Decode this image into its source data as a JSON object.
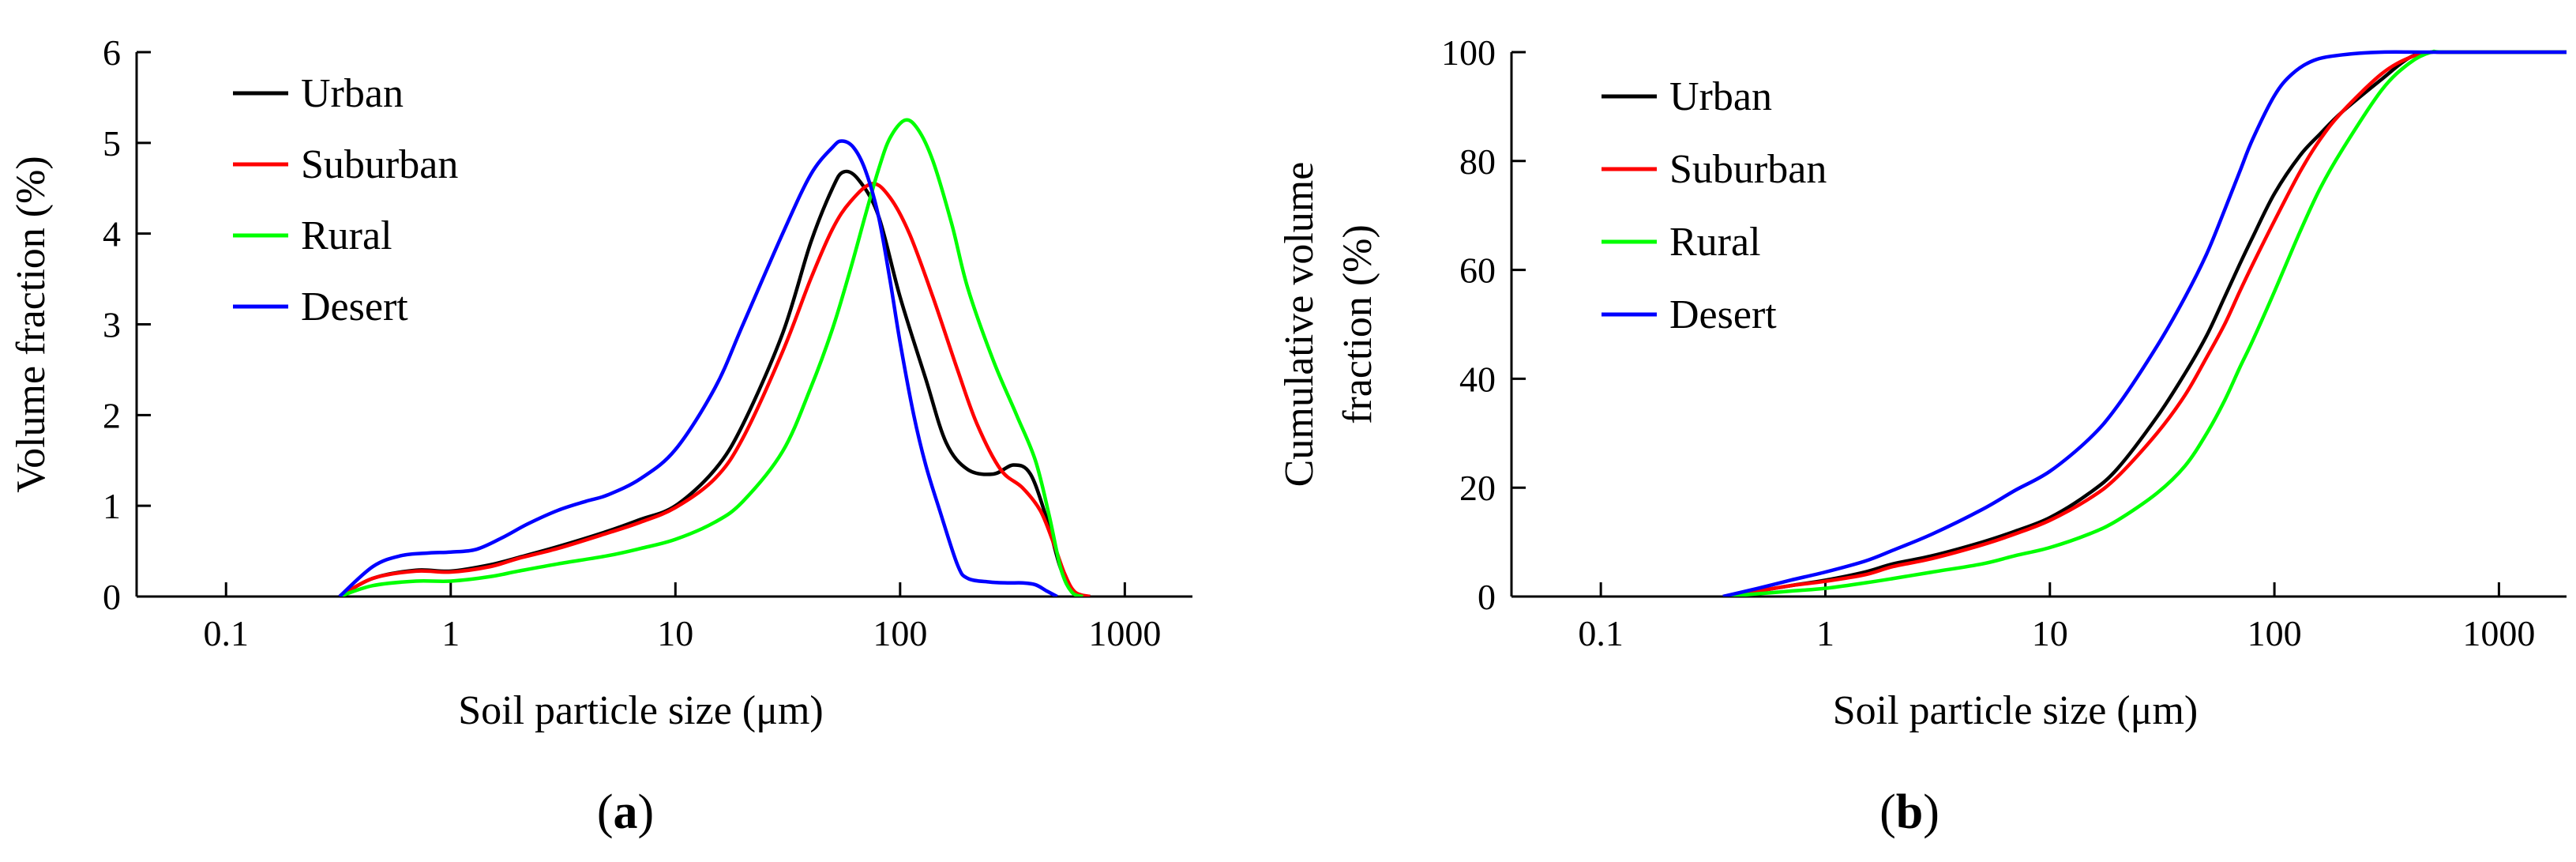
{
  "chart_data": [
    {
      "panel": "a",
      "type": "line",
      "xscale": "log",
      "xlabel": "Soil particle size (μm)",
      "ylabel": "Volume fraction (%)",
      "xlim": [
        0.04,
        2000
      ],
      "ylim": [
        0,
        6
      ],
      "xticks": [
        0.1,
        1,
        10,
        100,
        1000
      ],
      "xtick_labels": [
        "0.1",
        "1",
        "10",
        "100",
        "1000"
      ],
      "yticks": [
        0,
        1,
        2,
        3,
        4,
        5,
        6
      ],
      "ytick_labels": [
        "0",
        "1",
        "2",
        "3",
        "4",
        "5",
        "6"
      ],
      "label_parts": [
        "(",
        "a",
        ")"
      ],
      "series": [
        {
          "name": "Urban",
          "color": "#000000",
          "x": [
            0.32,
            0.45,
            0.7,
            1.0,
            1.5,
            2,
            3,
            5,
            7,
            10,
            15,
            20,
            30,
            40,
            50,
            56,
            65,
            80,
            100,
            130,
            160,
            200,
            260,
            320,
            380,
            450,
            520,
            600,
            700
          ],
          "y": [
            0,
            0.2,
            0.29,
            0.28,
            0.35,
            0.43,
            0.55,
            0.72,
            0.85,
            1.0,
            1.4,
            1.9,
            2.9,
            3.9,
            4.5,
            4.68,
            4.6,
            4.2,
            3.3,
            2.4,
            1.7,
            1.4,
            1.35,
            1.45,
            1.35,
            0.85,
            0.3,
            0.04,
            0
          ]
        },
        {
          "name": "Suburban",
          "color": "#ff0000",
          "x": [
            0.32,
            0.45,
            0.7,
            1.0,
            1.5,
            2,
            3,
            5,
            7,
            10,
            15,
            20,
            30,
            40,
            50,
            60,
            75,
            90,
            110,
            140,
            180,
            220,
            280,
            350,
            420,
            480,
            540,
            600,
            700
          ],
          "y": [
            0,
            0.2,
            0.28,
            0.27,
            0.33,
            0.42,
            0.53,
            0.7,
            0.82,
            0.98,
            1.3,
            1.75,
            2.7,
            3.5,
            4.05,
            4.35,
            4.55,
            4.4,
            4.0,
            3.3,
            2.5,
            1.9,
            1.4,
            1.2,
            0.95,
            0.6,
            0.25,
            0.05,
            0
          ]
        },
        {
          "name": "Rural",
          "color": "#00ff00",
          "x": [
            0.32,
            0.45,
            0.7,
            1.0,
            1.5,
            2,
            3,
            5,
            7,
            10,
            15,
            20,
            30,
            40,
            50,
            60,
            70,
            80,
            90,
            105,
            120,
            140,
            170,
            200,
            260,
            330,
            400,
            460,
            520,
            580,
            650
          ],
          "y": [
            0,
            0.12,
            0.17,
            0.17,
            0.22,
            0.28,
            0.36,
            0.45,
            0.53,
            0.63,
            0.82,
            1.05,
            1.6,
            2.3,
            2.95,
            3.6,
            4.2,
            4.7,
            5.05,
            5.25,
            5.15,
            4.8,
            4.1,
            3.4,
            2.6,
            2.0,
            1.5,
            0.9,
            0.3,
            0.05,
            0
          ]
        },
        {
          "name": "Desert",
          "color": "#0000ff",
          "x": [
            0.32,
            0.45,
            0.6,
            0.8,
            1.0,
            1.3,
            1.7,
            2.2,
            3,
            4,
            5,
            7,
            10,
            15,
            20,
            30,
            40,
            50,
            55,
            62,
            70,
            80,
            90,
            100,
            115,
            130,
            150,
            180,
            200,
            250,
            300,
            350,
            400,
            450,
            500
          ],
          "y": [
            0,
            0.33,
            0.45,
            0.48,
            0.49,
            0.52,
            0.65,
            0.8,
            0.95,
            1.05,
            1.12,
            1.3,
            1.62,
            2.3,
            3.0,
            4.0,
            4.65,
            4.95,
            5.02,
            4.95,
            4.7,
            4.2,
            3.5,
            2.8,
            2.0,
            1.45,
            0.95,
            0.35,
            0.2,
            0.16,
            0.15,
            0.15,
            0.13,
            0.06,
            0
          ]
        }
      ]
    },
    {
      "panel": "b",
      "type": "line",
      "xscale": "log",
      "xlabel": "Soil particle size (μm)",
      "ylabel": [
        "Cumulative volume",
        "fraction (%)"
      ],
      "xlim": [
        0.04,
        2000
      ],
      "ylim": [
        0,
        100
      ],
      "xticks": [
        0.1,
        1,
        10,
        100,
        1000
      ],
      "xtick_labels": [
        "0.1",
        "1",
        "10",
        "100",
        "1000"
      ],
      "yticks": [
        0,
        20,
        40,
        60,
        80,
        100
      ],
      "ytick_labels": [
        "0",
        "20",
        "40",
        "60",
        "80",
        "100"
      ],
      "label_parts": [
        "(",
        "b",
        ")"
      ],
      "series": [
        {
          "name": "Urban",
          "color": "#000000",
          "x": [
            0.35,
            0.5,
            0.7,
            1,
            1.5,
            2,
            3,
            5,
            7,
            10,
            15,
            20,
            30,
            40,
            50,
            60,
            70,
            80,
            100,
            130,
            160,
            200,
            300,
            400,
            500,
            600,
            2000
          ],
          "y": [
            0,
            1,
            2,
            3,
            4.5,
            6,
            7.5,
            10,
            12,
            14.5,
            19,
            23.5,
            33,
            41,
            48,
            55,
            61,
            66,
            74,
            81,
            85,
            89,
            95,
            99,
            100,
            100,
            100
          ]
        },
        {
          "name": "Suburban",
          "color": "#ff0000",
          "x": [
            0.35,
            0.5,
            0.7,
            1,
            1.5,
            2,
            3,
            5,
            7,
            10,
            15,
            20,
            30,
            40,
            50,
            60,
            70,
            80,
            100,
            130,
            160,
            200,
            300,
            400,
            500,
            600,
            2000
          ],
          "y": [
            0,
            1,
            2,
            2.8,
            4,
            5.5,
            7,
            9.5,
            11.5,
            14,
            18,
            22,
            30,
            37,
            44,
            50,
            56,
            61,
            69,
            78,
            84,
            89,
            96,
            99,
            100,
            100,
            100
          ]
        },
        {
          "name": "Rural",
          "color": "#00ff00",
          "x": [
            0.35,
            0.5,
            0.7,
            1,
            1.5,
            2,
            3,
            5,
            7,
            10,
            15,
            20,
            30,
            40,
            50,
            60,
            70,
            80,
            100,
            130,
            160,
            200,
            300,
            400,
            500,
            600,
            2000
          ],
          "y": [
            0,
            0.5,
            1,
            1.5,
            2.5,
            3.3,
            4.5,
            6,
            7.5,
            9,
            11.5,
            14,
            19,
            24,
            30,
            36,
            42,
            47,
            56,
            67,
            75,
            82,
            93,
            98,
            100,
            100,
            100
          ]
        },
        {
          "name": "Desert",
          "color": "#0000ff",
          "x": [
            0.35,
            0.5,
            0.7,
            1,
            1.5,
            2,
            3,
            5,
            7,
            10,
            15,
            20,
            30,
            40,
            50,
            60,
            70,
            80,
            100,
            120,
            150,
            200,
            300,
            500,
            2000
          ],
          "y": [
            0,
            1.5,
            3,
            4.5,
            6.5,
            8.5,
            11.5,
            16,
            19.5,
            23,
            29,
            35,
            46,
            55,
            63,
            71,
            78,
            84,
            92,
            96,
            98.5,
            99.5,
            100,
            100,
            100
          ]
        }
      ]
    }
  ]
}
